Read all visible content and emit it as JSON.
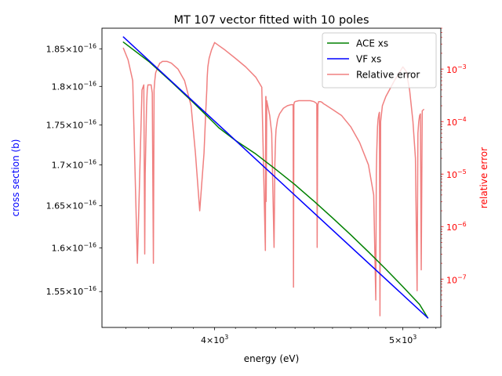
{
  "chart_data": {
    "type": "line",
    "title": "MT 107 vector fitted with 10 poles",
    "xlabel": "energy (eV)",
    "ylabel_left": "cross section (b)",
    "ylabel_right": "relative error",
    "xscale": "log",
    "yscale_left": "log",
    "yscale_right": "log",
    "xlim": [
      3500,
      5230
    ],
    "ylim_left": [
      1.51e-16,
      1.878e-16
    ],
    "ylim_right": [
      1.2e-08,
      0.006
    ],
    "x_ticks": [
      {
        "value": 4000,
        "label_base": "4×10",
        "label_exp": "3"
      },
      {
        "value": 5000,
        "label_base": "5×10",
        "label_exp": "3"
      }
    ],
    "y_left_ticks": [
      {
        "value": 1.55e-16,
        "mant": "1.55×10",
        "exp": "−16"
      },
      {
        "value": 1.6e-16,
        "mant": "1.6×10",
        "exp": "−16"
      },
      {
        "value": 1.65e-16,
        "mant": "1.65×10",
        "exp": "−16"
      },
      {
        "value": 1.7e-16,
        "mant": "1.7×10",
        "exp": "−16"
      },
      {
        "value": 1.75e-16,
        "mant": "1.75×10",
        "exp": "−16"
      },
      {
        "value": 1.8e-16,
        "mant": "1.8×10",
        "exp": "−16"
      },
      {
        "value": 1.85e-16,
        "mant": "1.85×10",
        "exp": "−16"
      }
    ],
    "y_right_ticks": [
      {
        "value": 1e-07,
        "base": "10",
        "exp": "−7"
      },
      {
        "value": 1e-06,
        "base": "10",
        "exp": "−6"
      },
      {
        "value": 1e-05,
        "base": "10",
        "exp": "−5"
      },
      {
        "value": 0.0001,
        "base": "10",
        "exp": "−4"
      },
      {
        "value": 0.001,
        "base": "10",
        "exp": "−3"
      }
    ],
    "legend": {
      "position": "upper right"
    },
    "series": [
      {
        "name": "ACE xs",
        "axis": "left",
        "color": "#008000",
        "x": [
          3590,
          3700,
          3800,
          3900,
          4000,
          4020,
          4100,
          4200,
          4300,
          4400,
          4500,
          4600,
          4700,
          4800,
          4900,
          5000,
          5100,
          5150
        ],
        "y": [
          1.859e-16,
          1.833e-16,
          1.806e-16,
          1.779e-16,
          1.752e-16,
          1.7465e-16,
          1.7305e-16,
          1.7135e-16,
          1.6945e-16,
          1.6755e-16,
          1.6555e-16,
          1.6355e-16,
          1.6155e-16,
          1.5955e-16,
          1.5755e-16,
          1.5555e-16,
          1.5355e-16,
          1.5205e-16
        ]
      },
      {
        "name": "VF xs",
        "axis": "left",
        "color": "#0000ff",
        "x": [
          3590,
          5150
        ],
        "y": [
          1.866e-16,
          1.5205e-16
        ]
      },
      {
        "name": "Relative error",
        "axis": "right",
        "color": "#f08080",
        "x": [
          3590,
          3610,
          3630,
          3650,
          3670,
          3678,
          3682,
          3684,
          3690,
          3693,
          3696,
          3700,
          3710,
          3715,
          3720,
          3723,
          3726,
          3730,
          3740,
          3745,
          3748,
          3751,
          3755,
          3760,
          3780,
          3800,
          3830,
          3860,
          3890,
          3910,
          3930,
          3950,
          3958,
          3963,
          3965,
          3968,
          3974,
          3985,
          4000,
          4020,
          4050,
          4100,
          4150,
          4200,
          4230,
          4248,
          4250,
          4251,
          4252,
          4255,
          4260,
          4270,
          4280,
          4292,
          4296,
          4298,
          4300,
          4302,
          4310,
          4320,
          4340,
          4360,
          4380,
          4390,
          4392,
          4394,
          4396,
          4400,
          4420,
          4450,
          4480,
          4500,
          4515,
          4517,
          4519,
          4521,
          4525,
          4535,
          4545,
          4550,
          4560,
          4600,
          4650,
          4700,
          4750,
          4800,
          4830,
          4842,
          4845,
          4848,
          4852,
          4855,
          4860,
          4863,
          4866,
          4870,
          4880,
          4900,
          4950,
          5000,
          5020,
          5040,
          5060,
          5075,
          5085,
          5090,
          5095,
          5100,
          5105,
          5110,
          5116,
          5125
        ],
        "y": [
          0.0025,
          0.0015,
          0.0006,
          2e-07,
          0.0004,
          0.0005,
          3e-07,
          1e-05,
          0.0002,
          0.0004,
          0.0005,
          0.0005,
          0.0005,
          0.00035,
          2e-07,
          0.0004,
          0.0006,
          0.00085,
          0.0011,
          0.0012,
          0.0013,
          0.0013,
          0.00135,
          0.0014,
          0.0014,
          0.0013,
          0.001,
          0.0006,
          0.0002,
          2.5e-05,
          2e-06,
          2.5e-05,
          0.00015,
          0.0004,
          0.0007,
          0.0011,
          0.0016,
          0.0023,
          0.0032,
          0.0028,
          0.0023,
          0.0016,
          0.0011,
          0.0007,
          0.00045,
          3.5e-07,
          0.0003,
          0.0003,
          3e-06,
          0.00025,
          0.0002,
          0.00013,
          6e-05,
          4e-07,
          1.5e-05,
          3e-05,
          5e-05,
          7e-05,
          0.00011,
          0.00014,
          0.00018,
          0.0002,
          0.00021,
          0.00021,
          7e-08,
          0.00021,
          0.00023,
          0.00024,
          0.00025,
          0.00025,
          0.00025,
          0.00024,
          0.00022,
          4e-07,
          3e-05,
          0.00021,
          0.00024,
          0.00024,
          0.00023,
          0.00022,
          0.00021,
          0.00017,
          0.00013,
          8e-05,
          4e-05,
          1.5e-05,
          4e-06,
          4e-08,
          1e-05,
          3e-05,
          8e-05,
          0.00011,
          0.00014,
          0.00015,
          2e-08,
          0.0001,
          0.0002,
          0.0003,
          0.0006,
          0.0011,
          0.0009,
          0.0004,
          0.0001,
          2e-05,
          6e-08,
          6e-05,
          0.0001,
          0.00013,
          0.00014,
          1.5e-07,
          0.00016,
          0.00017
        ]
      }
    ]
  }
}
